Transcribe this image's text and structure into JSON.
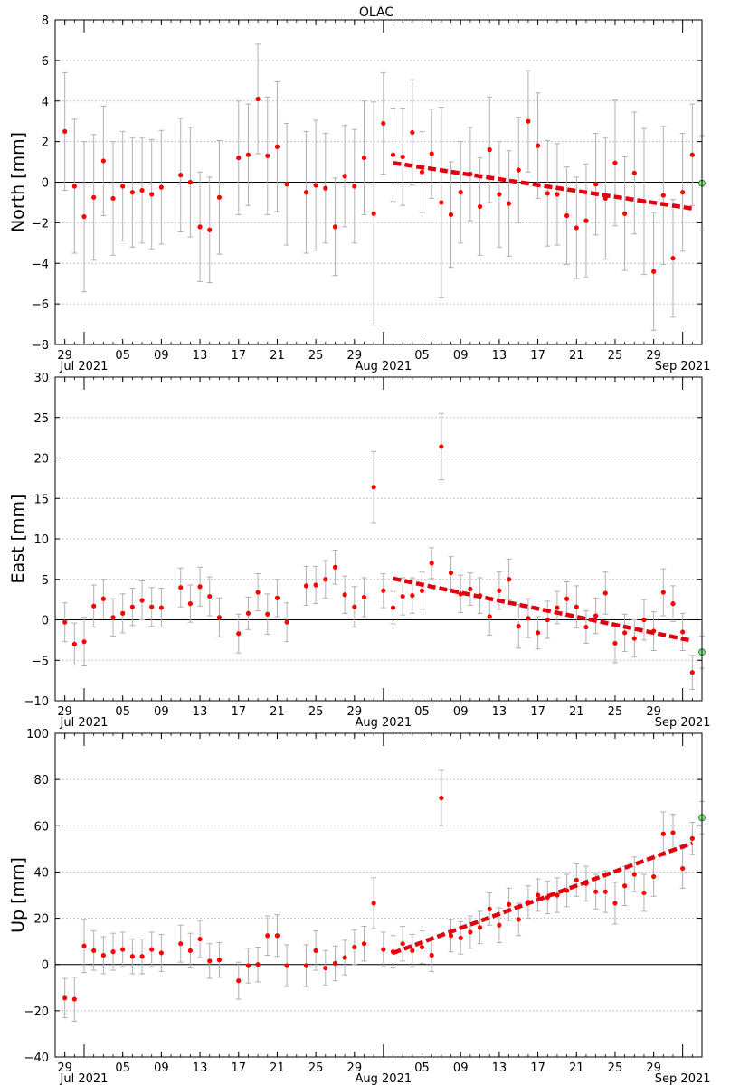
{
  "title": "OLAC",
  "x_tick_labels": [
    "29",
    "05",
    "09",
    "13",
    "17",
    "21",
    "25",
    "29",
    "05",
    "09",
    "13",
    "17",
    "21",
    "25",
    "29"
  ],
  "x_major_labels": [
    "Jul 2021",
    "Aug 2021",
    "Sep 2021"
  ],
  "colors": {
    "points": "#ff0000",
    "errorbars": "#b0b0b0",
    "trend": "#e0000e",
    "latest_point": "#90ee90",
    "grid": "#b0b0b0"
  },
  "chart_data": [
    {
      "type": "scatter",
      "ylabel": "North [mm]",
      "ylim": [
        -8,
        8
      ],
      "yticks": [
        "−8",
        "−6",
        "−4",
        "−2",
        "0",
        "2",
        "4",
        "6",
        "8"
      ],
      "xlim": [
        "2021-06-28",
        "2021-09-03"
      ],
      "grid": "horizontal dotted",
      "points": [
        [
          "2021-06-29",
          2.5,
          2.9
        ],
        [
          "2021-06-30",
          -0.2,
          3.3
        ],
        [
          "2021-07-01",
          -1.7,
          3.7
        ],
        [
          "2021-07-02",
          -0.75,
          3.1
        ],
        [
          "2021-07-03",
          1.05,
          2.7
        ],
        [
          "2021-07-04",
          -0.8,
          2.8
        ],
        [
          "2021-07-05",
          -0.2,
          2.7
        ],
        [
          "2021-07-06",
          -0.5,
          2.7
        ],
        [
          "2021-07-07",
          -0.4,
          2.6
        ],
        [
          "2021-07-08",
          -0.6,
          2.7
        ],
        [
          "2021-07-09",
          -0.25,
          2.8
        ],
        [
          "2021-07-11",
          0.35,
          2.8
        ],
        [
          "2021-07-12",
          0.0,
          2.7
        ],
        [
          "2021-07-13",
          -2.2,
          2.7
        ],
        [
          "2021-07-14",
          -2.35,
          2.6
        ],
        [
          "2021-07-15",
          -0.75,
          2.8
        ],
        [
          "2021-07-17",
          1.2,
          2.8
        ],
        [
          "2021-07-18",
          1.35,
          2.5
        ],
        [
          "2021-07-19",
          4.1,
          2.7
        ],
        [
          "2021-07-20",
          1.3,
          2.9
        ],
        [
          "2021-07-21",
          1.75,
          3.2
        ],
        [
          "2021-07-22",
          -0.1,
          3.0
        ],
        [
          "2021-07-24",
          -0.5,
          3.0
        ],
        [
          "2021-07-25",
          -0.15,
          3.2
        ],
        [
          "2021-07-26",
          -0.3,
          2.7
        ],
        [
          "2021-07-27",
          -2.2,
          2.4
        ],
        [
          "2021-07-28",
          0.3,
          2.5
        ],
        [
          "2021-07-29",
          -0.2,
          2.8
        ],
        [
          "2021-07-30",
          1.2,
          2.8
        ],
        [
          "2021-07-31",
          -1.55,
          5.5
        ],
        [
          "2021-08-01",
          2.9,
          2.5
        ],
        [
          "2021-08-02",
          1.35,
          2.3
        ],
        [
          "2021-08-03",
          1.25,
          2.4
        ],
        [
          "2021-08-04",
          2.45,
          2.6
        ],
        [
          "2021-08-05",
          0.5,
          2.0
        ],
        [
          "2021-08-06",
          1.4,
          2.2
        ],
        [
          "2021-08-07",
          -1.0,
          4.7
        ],
        [
          "2021-08-08",
          -1.6,
          2.6
        ],
        [
          "2021-08-09",
          -0.5,
          2.5
        ],
        [
          "2021-08-10",
          0.4,
          2.3
        ],
        [
          "2021-08-11",
          -1.2,
          2.4
        ],
        [
          "2021-08-12",
          1.6,
          2.6
        ],
        [
          "2021-08-13",
          -0.6,
          2.6
        ],
        [
          "2021-08-14",
          -1.05,
          2.6
        ],
        [
          "2021-08-15",
          0.6,
          2.6
        ],
        [
          "2021-08-16",
          3.0,
          2.5
        ],
        [
          "2021-08-17",
          1.8,
          2.6
        ],
        [
          "2021-08-18",
          -0.55,
          2.6
        ],
        [
          "2021-08-19",
          -0.6,
          2.5
        ],
        [
          "2021-08-20",
          -1.65,
          2.4
        ],
        [
          "2021-08-21",
          -2.25,
          2.5
        ],
        [
          "2021-08-22",
          -1.9,
          2.8
        ],
        [
          "2021-08-23",
          -0.1,
          2.5
        ],
        [
          "2021-08-24",
          -0.8,
          3.0
        ],
        [
          "2021-08-25",
          0.95,
          3.1
        ],
        [
          "2021-08-26",
          -1.55,
          2.8
        ],
        [
          "2021-08-27",
          0.45,
          3.0
        ],
        [
          "2021-08-28",
          -0.95,
          3.6
        ],
        [
          "2021-08-29",
          -4.4,
          2.9
        ],
        [
          "2021-08-30",
          -0.65,
          3.4
        ],
        [
          "2021-08-31",
          -3.75,
          2.9
        ],
        [
          "2021-09-01",
          -0.5,
          2.9
        ],
        [
          "2021-09-02",
          1.35,
          2.5
        ]
      ],
      "latest": [
        "2021-09-03",
        -0.05,
        2.35
      ],
      "trend": {
        "x": [
          "2021-08-02",
          "2021-09-02"
        ],
        "y": [
          0.95,
          -1.3
        ]
      }
    },
    {
      "type": "scatter",
      "ylabel": "East [mm]",
      "ylim": [
        -10,
        30
      ],
      "yticks": [
        "−10",
        "−5",
        "0",
        "5",
        "10",
        "15",
        "20",
        "25",
        "30"
      ],
      "xlim": [
        "2021-06-28",
        "2021-09-03"
      ],
      "grid": "horizontal dotted",
      "points": [
        [
          "2021-06-29",
          -0.3,
          2.4
        ],
        [
          "2021-06-30",
          -3.0,
          2.6
        ],
        [
          "2021-07-01",
          -2.7,
          3.0
        ],
        [
          "2021-07-02",
          1.7,
          2.6
        ],
        [
          "2021-07-03",
          2.6,
          2.4
        ],
        [
          "2021-07-04",
          0.3,
          2.3
        ],
        [
          "2021-07-05",
          0.8,
          2.4
        ],
        [
          "2021-07-06",
          1.6,
          2.3
        ],
        [
          "2021-07-07",
          2.4,
          2.4
        ],
        [
          "2021-07-08",
          1.6,
          2.4
        ],
        [
          "2021-07-09",
          1.5,
          2.4
        ],
        [
          "2021-07-11",
          4.0,
          2.4
        ],
        [
          "2021-07-12",
          2.0,
          2.3
        ],
        [
          "2021-07-13",
          4.1,
          2.4
        ],
        [
          "2021-07-14",
          2.9,
          2.4
        ],
        [
          "2021-07-15",
          0.3,
          2.4
        ],
        [
          "2021-07-17",
          -1.7,
          2.4
        ],
        [
          "2021-07-18",
          0.8,
          2.0
        ],
        [
          "2021-07-19",
          3.4,
          2.3
        ],
        [
          "2021-07-20",
          0.7,
          2.5
        ],
        [
          "2021-07-21",
          2.7,
          2.3
        ],
        [
          "2021-07-22",
          -0.3,
          2.4
        ],
        [
          "2021-07-24",
          4.2,
          2.4
        ],
        [
          "2021-07-25",
          4.3,
          2.3
        ],
        [
          "2021-07-26",
          5.0,
          2.3
        ],
        [
          "2021-07-27",
          6.5,
          2.1
        ],
        [
          "2021-07-28",
          3.1,
          2.3
        ],
        [
          "2021-07-29",
          1.6,
          2.5
        ],
        [
          "2021-07-30",
          2.8,
          2.4
        ],
        [
          "2021-07-31",
          16.4,
          4.4
        ],
        [
          "2021-08-01",
          3.6,
          2.1
        ],
        [
          "2021-08-02",
          1.5,
          2.0
        ],
        [
          "2021-08-03",
          2.9,
          2.3
        ],
        [
          "2021-08-04",
          3.0,
          2.2
        ],
        [
          "2021-08-05",
          3.6,
          2.3
        ],
        [
          "2021-08-06",
          7.0,
          1.9
        ],
        [
          "2021-08-07",
          21.4,
          4.1
        ],
        [
          "2021-08-08",
          5.8,
          2.0
        ],
        [
          "2021-08-09",
          3.2,
          2.3
        ],
        [
          "2021-08-10",
          3.8,
          2.0
        ],
        [
          "2021-08-11",
          3.0,
          2.2
        ],
        [
          "2021-08-12",
          0.4,
          2.3
        ],
        [
          "2021-08-13",
          3.6,
          2.3
        ],
        [
          "2021-08-14",
          5.0,
          2.5
        ],
        [
          "2021-08-15",
          -0.8,
          2.7
        ],
        [
          "2021-08-16",
          0.2,
          2.4
        ],
        [
          "2021-08-17",
          -1.6,
          2.0
        ],
        [
          "2021-08-18",
          0.0,
          2.3
        ],
        [
          "2021-08-19",
          1.5,
          2.0
        ],
        [
          "2021-08-20",
          2.6,
          2.1
        ],
        [
          "2021-08-21",
          1.6,
          2.6
        ],
        [
          "2021-08-22",
          -0.9,
          2.0
        ],
        [
          "2021-08-23",
          0.5,
          2.2
        ],
        [
          "2021-08-24",
          3.3,
          2.6
        ],
        [
          "2021-08-25",
          -2.9,
          2.4
        ],
        [
          "2021-08-26",
          -1.6,
          2.3
        ],
        [
          "2021-08-27",
          -2.3,
          2.3
        ],
        [
          "2021-08-28",
          0.0,
          2.5
        ],
        [
          "2021-08-29",
          -1.4,
          2.4
        ],
        [
          "2021-08-30",
          3.4,
          2.9
        ],
        [
          "2021-08-31",
          2.0,
          2.2
        ],
        [
          "2021-09-01",
          -1.5,
          2.3
        ],
        [
          "2021-09-02",
          -6.5,
          2.1
        ]
      ],
      "latest": [
        "2021-09-03",
        -4.0,
        2.0
      ],
      "trend": {
        "x": [
          "2021-08-02",
          "2021-09-02"
        ],
        "y": [
          5.1,
          -2.6
        ]
      }
    },
    {
      "type": "scatter",
      "ylabel": "Up [mm]",
      "ylim": [
        -40,
        100
      ],
      "yticks": [
        "−40",
        "−20",
        "0",
        "20",
        "40",
        "60",
        "80",
        "100"
      ],
      "xlim": [
        "2021-06-28",
        "2021-09-03"
      ],
      "grid": "horizontal dotted",
      "points": [
        [
          "2021-06-29",
          -14.5,
          8.5
        ],
        [
          "2021-06-30",
          -15.0,
          9.5
        ],
        [
          "2021-07-01",
          8.0,
          11.5
        ],
        [
          "2021-07-02",
          6.0,
          8.5
        ],
        [
          "2021-07-03",
          4.0,
          8.0
        ],
        [
          "2021-07-04",
          5.5,
          8.0
        ],
        [
          "2021-07-05",
          6.5,
          7.5
        ],
        [
          "2021-07-06",
          3.5,
          7.5
        ],
        [
          "2021-07-07",
          3.5,
          7.5
        ],
        [
          "2021-07-08",
          6.5,
          7.5
        ],
        [
          "2021-07-09",
          5.0,
          8.0
        ],
        [
          "2021-07-11",
          9.0,
          8.0
        ],
        [
          "2021-07-12",
          6.0,
          7.5
        ],
        [
          "2021-07-13",
          11.0,
          8.0
        ],
        [
          "2021-07-14",
          1.5,
          7.5
        ],
        [
          "2021-07-15",
          2.0,
          7.5
        ],
        [
          "2021-07-17",
          -7.0,
          8.0
        ],
        [
          "2021-07-18",
          -0.5,
          7.5
        ],
        [
          "2021-07-19",
          0.0,
          7.5
        ],
        [
          "2021-07-20",
          12.5,
          8.5
        ],
        [
          "2021-07-21",
          12.5,
          9.0
        ],
        [
          "2021-07-22",
          -0.5,
          9.0
        ],
        [
          "2021-07-24",
          -0.5,
          9.0
        ],
        [
          "2021-07-25",
          6.0,
          8.5
        ],
        [
          "2021-07-26",
          -1.5,
          7.5
        ],
        [
          "2021-07-27",
          0.5,
          7.5
        ],
        [
          "2021-07-28",
          3.0,
          7.5
        ],
        [
          "2021-07-29",
          7.5,
          7.5
        ],
        [
          "2021-07-30",
          9.0,
          7.5
        ],
        [
          "2021-07-31",
          26.5,
          11.0
        ],
        [
          "2021-08-01",
          6.5,
          7.5
        ],
        [
          "2021-08-02",
          5.5,
          7.0
        ],
        [
          "2021-08-03",
          9.0,
          7.5
        ],
        [
          "2021-08-04",
          6.0,
          7.0
        ],
        [
          "2021-08-05",
          7.5,
          7.0
        ],
        [
          "2021-08-06",
          4.0,
          7.0
        ],
        [
          "2021-08-07",
          72.0,
          12.0
        ],
        [
          "2021-08-08",
          12.5,
          7.0
        ],
        [
          "2021-08-09",
          11.5,
          7.0
        ],
        [
          "2021-08-10",
          14.0,
          7.0
        ],
        [
          "2021-08-11",
          16.0,
          7.0
        ],
        [
          "2021-08-12",
          24.0,
          7.0
        ],
        [
          "2021-08-13",
          17.0,
          7.5
        ],
        [
          "2021-08-14",
          26.0,
          7.0
        ],
        [
          "2021-08-15",
          19.5,
          7.0
        ],
        [
          "2021-08-16",
          27.0,
          7.0
        ],
        [
          "2021-08-17",
          30.0,
          7.0
        ],
        [
          "2021-08-18",
          29.0,
          7.0
        ],
        [
          "2021-08-19",
          30.0,
          7.5
        ],
        [
          "2021-08-20",
          32.0,
          7.0
        ],
        [
          "2021-08-21",
          36.5,
          7.0
        ],
        [
          "2021-08-22",
          35.0,
          7.5
        ],
        [
          "2021-08-23",
          31.5,
          7.5
        ],
        [
          "2021-08-24",
          31.5,
          9.0
        ],
        [
          "2021-08-25",
          26.5,
          9.0
        ],
        [
          "2021-08-26",
          34.0,
          8.5
        ],
        [
          "2021-08-27",
          39.0,
          7.5
        ],
        [
          "2021-08-28",
          31.0,
          8.0
        ],
        [
          "2021-08-29",
          38.0,
          8.5
        ],
        [
          "2021-08-30",
          56.5,
          9.5
        ],
        [
          "2021-08-31",
          57.0,
          8.0
        ],
        [
          "2021-09-01",
          41.5,
          8.5
        ],
        [
          "2021-09-02",
          54.5,
          7.0
        ]
      ],
      "latest": [
        "2021-09-03",
        63.5,
        7.0
      ],
      "trend": {
        "x": [
          "2021-08-02",
          "2021-09-02"
        ],
        "y": [
          5.0,
          52.5
        ]
      }
    }
  ]
}
